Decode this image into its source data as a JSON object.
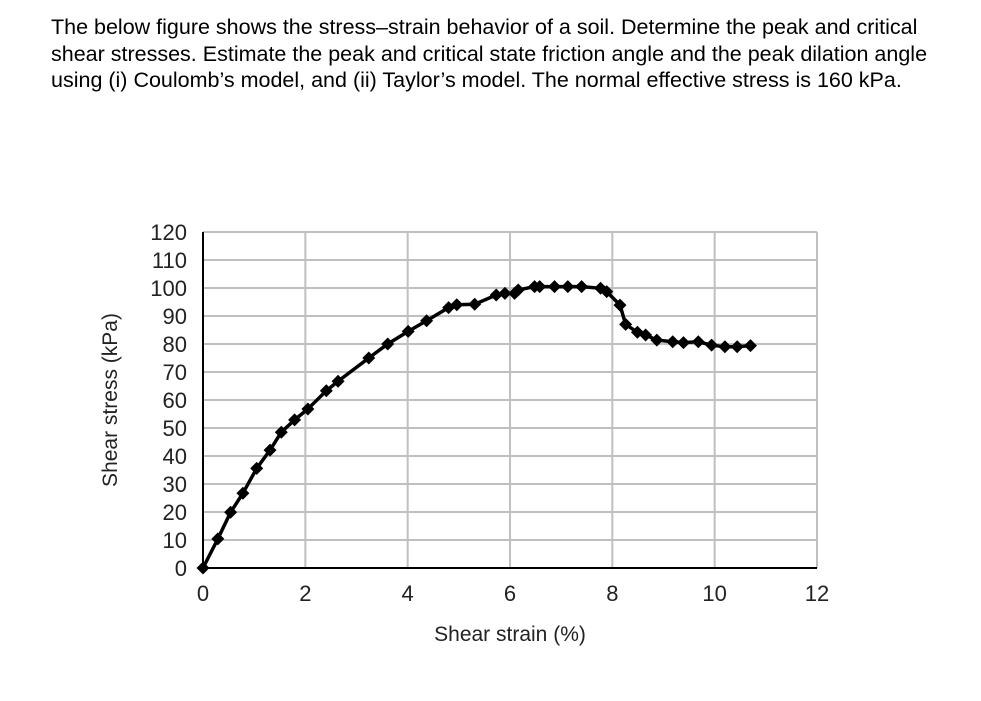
{
  "question": "The below figure shows the stress–strain behavior of a soil. Determine the peak and critical shear stresses. Estimate the peak and critical state friction angle and the peak dilation angle using (i) Coulomb’s model, and (ii) Taylor’s model. The normal effective stress is 160 kPa.",
  "chart_data": {
    "type": "line",
    "title": "",
    "xlabel": "Shear strain (%)",
    "ylabel": "Shear stress (kPa)",
    "xlim": [
      0,
      12
    ],
    "ylim": [
      0,
      120
    ],
    "xticks": [
      0,
      2,
      4,
      6,
      8,
      10,
      12
    ],
    "yticks": [
      0,
      10,
      20,
      30,
      40,
      50,
      60,
      70,
      80,
      90,
      100,
      110,
      120
    ],
    "grid": true,
    "marker": "diamond",
    "color": "#000000",
    "grid_color": "#c0c0c0",
    "x": [
      0,
      0.29,
      0.54,
      0.78,
      1.05,
      1.31,
      1.53,
      1.79,
      2.05,
      2.41,
      2.64,
      3.24,
      3.61,
      4.01,
      4.37,
      4.8,
      4.96,
      5.31,
      5.73,
      5.9,
      6.09,
      6.16,
      6.48,
      6.58,
      6.87,
      7.13,
      7.4,
      7.77,
      7.89,
      8.15,
      8.26,
      8.49,
      8.65,
      8.87,
      9.18,
      9.39,
      9.68,
      9.94,
      10.2,
      10.44,
      10.7
    ],
    "y": [
      0,
      10.4,
      19.9,
      26.7,
      35.6,
      42.1,
      48.5,
      52.9,
      56.8,
      63.3,
      66.7,
      75.0,
      80.0,
      84.5,
      88.3,
      93.0,
      94.0,
      94.2,
      97.5,
      98.1,
      98.1,
      99.3,
      100.5,
      100.5,
      100.5,
      100.5,
      100.5,
      99.9,
      98.7,
      93.9,
      87.0,
      84.2,
      83.2,
      81.4,
      80.8,
      80.5,
      80.8,
      79.6,
      79.0,
      79.0,
      79.4
    ]
  }
}
